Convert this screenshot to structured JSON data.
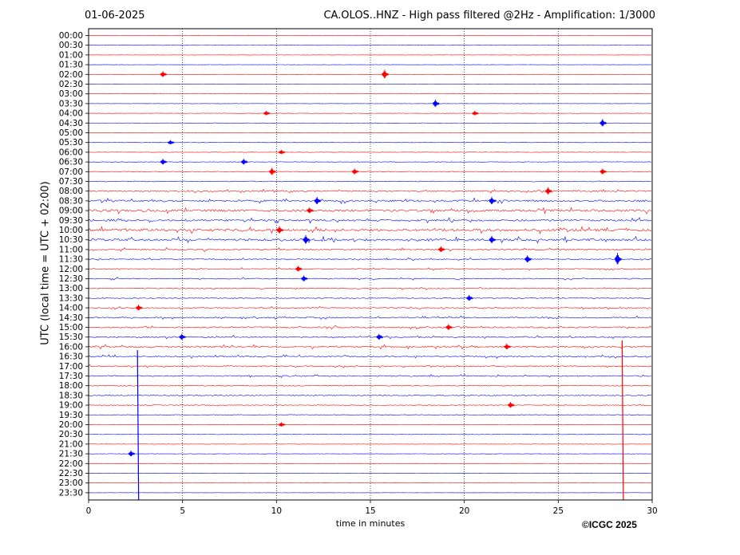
{
  "header": {
    "date": "01-06-2025",
    "station": "CA.OLOS..HNZ - High pass filtered @2Hz - Amplification: 1/3000"
  },
  "footer": {
    "copyright": "©ICGC 2025"
  },
  "chart_data": {
    "type": "line",
    "title": "CA.OLOS..HNZ - High pass filtered @2Hz - Amplification: 1/3000",
    "subtitle": "01-06-2025",
    "xlabel": "time in minutes",
    "ylabel": "UTC (local time = UTC + 02:00)",
    "xlim": [
      0,
      30
    ],
    "xticks": [
      0,
      5,
      10,
      15,
      20,
      25,
      30
    ],
    "grid": "vertical dotted lines every 5 minutes",
    "rows": [
      "00:00",
      "00:30",
      "01:00",
      "01:30",
      "02:00",
      "02:30",
      "03:00",
      "03:30",
      "04:00",
      "04:30",
      "05:00",
      "05:30",
      "06:00",
      "06:30",
      "07:00",
      "07:30",
      "08:00",
      "08:30",
      "09:00",
      "09:30",
      "10:00",
      "10:30",
      "11:00",
      "11:30",
      "12:00",
      "12:30",
      "13:00",
      "13:30",
      "14:00",
      "14:30",
      "15:00",
      "15:30",
      "16:00",
      "16:30",
      "17:00",
      "17:30",
      "18:00",
      "18:30",
      "19:00",
      "19:30",
      "20:00",
      "20:30",
      "21:00",
      "21:30",
      "22:00",
      "22:30",
      "23:00",
      "23:30"
    ],
    "trace_colors": [
      "#ff0000",
      "#0000ff"
    ],
    "noise_level": [
      0.3,
      0.3,
      0.3,
      0.3,
      0.3,
      0.3,
      0.3,
      0.3,
      0.4,
      0.4,
      0.4,
      0.5,
      0.5,
      0.6,
      0.8,
      1.0,
      1.5,
      2.2,
      2.6,
      2.2,
      2.8,
      2.6,
      1.6,
      1.2,
      1.2,
      1.2,
      1.1,
      1.0,
      1.1,
      1.4,
      1.6,
      1.4,
      1.8,
      1.4,
      1.3,
      1.3,
      1.0,
      1.0,
      0.9,
      0.8,
      0.7,
      0.5,
      0.4,
      0.4,
      0.3,
      0.3,
      0.3,
      0.2
    ],
    "events": [
      {
        "row": "02:00",
        "minute": 4.0,
        "amp": 4
      },
      {
        "row": "02:00",
        "minute": 15.8,
        "amp": 6
      },
      {
        "row": "03:30",
        "minute": 18.5,
        "amp": 5
      },
      {
        "row": "04:00",
        "minute": 9.5,
        "amp": 3
      },
      {
        "row": "04:00",
        "minute": 20.6,
        "amp": 3
      },
      {
        "row": "04:30",
        "minute": 27.4,
        "amp": 5
      },
      {
        "row": "05:30",
        "minute": 4.4,
        "amp": 3
      },
      {
        "row": "06:00",
        "minute": 10.3,
        "amp": 3
      },
      {
        "row": "06:30",
        "minute": 4.0,
        "amp": 4
      },
      {
        "row": "06:30",
        "minute": 8.3,
        "amp": 4
      },
      {
        "row": "07:00",
        "minute": 9.8,
        "amp": 5
      },
      {
        "row": "07:00",
        "minute": 14.2,
        "amp": 4
      },
      {
        "row": "07:00",
        "minute": 27.4,
        "amp": 4
      },
      {
        "row": "08:00",
        "minute": 24.5,
        "amp": 5
      },
      {
        "row": "08:30",
        "minute": 12.2,
        "amp": 5
      },
      {
        "row": "08:30",
        "minute": 21.5,
        "amp": 5
      },
      {
        "row": "09:00",
        "minute": 11.8,
        "amp": 4
      },
      {
        "row": "10:00",
        "minute": 10.2,
        "amp": 5
      },
      {
        "row": "10:30",
        "minute": 11.6,
        "amp": 6
      },
      {
        "row": "10:30",
        "minute": 21.5,
        "amp": 5
      },
      {
        "row": "11:00",
        "minute": 18.8,
        "amp": 4
      },
      {
        "row": "11:30",
        "minute": 23.4,
        "amp": 5
      },
      {
        "row": "11:30",
        "minute": 28.2,
        "amp": 8
      },
      {
        "row": "12:00",
        "minute": 11.2,
        "amp": 4
      },
      {
        "row": "12:30",
        "minute": 11.5,
        "amp": 4
      },
      {
        "row": "13:30",
        "minute": 20.3,
        "amp": 4
      },
      {
        "row": "14:00",
        "minute": 2.7,
        "amp": 4
      },
      {
        "row": "15:00",
        "minute": 19.2,
        "amp": 4
      },
      {
        "row": "15:30",
        "minute": 5.0,
        "amp": 4
      },
      {
        "row": "15:30",
        "minute": 15.5,
        "amp": 4
      },
      {
        "row": "16:00",
        "minute": 22.3,
        "amp": 4
      },
      {
        "row": "19:00",
        "minute": 22.5,
        "amp": 4
      },
      {
        "row": "20:00",
        "minute": 10.3,
        "amp": 3
      },
      {
        "row": "21:30",
        "minute": 2.3,
        "amp": 4
      }
    ],
    "large_events": [
      {
        "row_start": "16:30",
        "row_end": "23:30",
        "minute": 2.6,
        "color": "#0000ff"
      },
      {
        "row_start": "16:00",
        "row_end": "23:30",
        "minute": 28.4,
        "color": "#ff0000"
      }
    ]
  }
}
